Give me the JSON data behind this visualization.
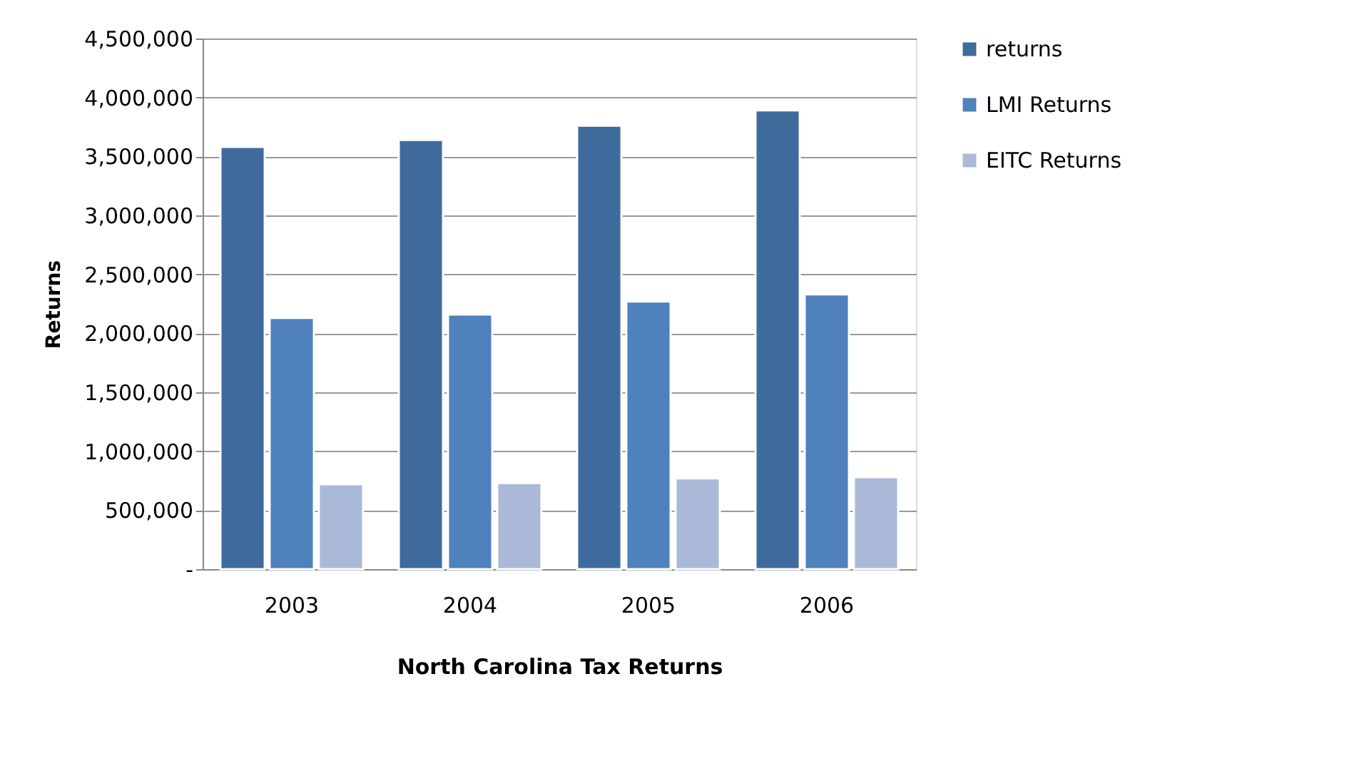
{
  "chart_data": {
    "type": "bar",
    "xlabel": "North Carolina Tax Returns",
    "ylabel": "Returns",
    "categories": [
      "2003",
      "2004",
      "2005",
      "2006"
    ],
    "series": [
      {
        "name": "returns",
        "color": "#3f6a9c",
        "values": [
          3580000,
          3640000,
          3760000,
          3890000
        ]
      },
      {
        "name": "LMI Returns",
        "color": "#4f81bd",
        "values": [
          2130000,
          2160000,
          2270000,
          2330000
        ]
      },
      {
        "name": "EITC Returns",
        "color": "#aab9d7",
        "values": [
          720000,
          730000,
          770000,
          780000
        ]
      }
    ],
    "ylim": [
      0,
      4500000
    ],
    "yticks": [
      {
        "value": 0,
        "label": "-"
      },
      {
        "value": 500000,
        "label": "500,000"
      },
      {
        "value": 1000000,
        "label": "1,000,000"
      },
      {
        "value": 1500000,
        "label": "1,500,000"
      },
      {
        "value": 2000000,
        "label": "2,000,000"
      },
      {
        "value": 2500000,
        "label": "2,500,000"
      },
      {
        "value": 3000000,
        "label": "3,000,000"
      },
      {
        "value": 3500000,
        "label": "3,500,000"
      },
      {
        "value": 4000000,
        "label": "4,000,000"
      },
      {
        "value": 4500000,
        "label": "4,500,000"
      }
    ],
    "grid": "y",
    "legend": "right"
  }
}
